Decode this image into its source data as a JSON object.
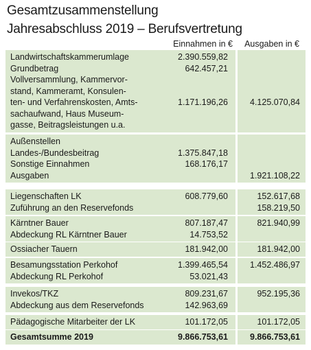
{
  "title_line1": "Gesamtzusammenstellung",
  "title_line2": "Jahresabschluss 2019 – Berufsvertretung",
  "col_income": "Einnahmen in €",
  "col_expense": "Ausgaben in €",
  "groups": [
    {
      "rows": [
        {
          "label": "Landwirtschaftskammerumlage",
          "in": "2.390.559,82",
          "out": ""
        },
        {
          "label": "Grundbetrag",
          "in": "642.457,21",
          "out": ""
        },
        {
          "label": "Vollversammlung, Kammervor-",
          "in": "",
          "out": ""
        },
        {
          "label": "stand, Kammeramt, Konsulen-",
          "in": "",
          "out": ""
        },
        {
          "label": "ten- und Verfahrenskosten, Amts-",
          "in": "1.171.196,26",
          "out": "4.125.070,84"
        },
        {
          "label": "sachaufwand, Haus Museum-",
          "in": "",
          "out": ""
        },
        {
          "label": "gasse, Beitragsleistungen u.a.",
          "in": "",
          "out": ""
        }
      ]
    },
    {
      "rows": [
        {
          "label": "Außenstellen",
          "in": "",
          "out": ""
        },
        {
          "label": "Landes-/Bundesbeitrag",
          "in": "1.375.847,18",
          "out": ""
        },
        {
          "label": "Sonstige Einnahmen",
          "in": "168.176,17",
          "out": ""
        },
        {
          "label": "Ausgaben",
          "in": "",
          "out": "1.921.108,22"
        }
      ]
    },
    {
      "rows": [
        {
          "label": "Liegenschaften LK",
          "in": "608.779,60",
          "out": "152.617,68"
        },
        {
          "label": "Zuführung an den Reservefonds",
          "in": "",
          "out": "158.219,50"
        }
      ]
    },
    {
      "rows": [
        {
          "label": "Kärntner Bauer",
          "in": "807.187,47",
          "out": "821.940,99"
        },
        {
          "label": "Abdeckung RL Kärntner Bauer",
          "in": "14.753,52",
          "out": ""
        }
      ]
    },
    {
      "rows": [
        {
          "label": "Ossiacher Tauern",
          "in": "181.942,00",
          "out": "181.942,00"
        }
      ]
    },
    {
      "rows": [
        {
          "label": "Besamungsstation Perkohof",
          "in": "1.399.465,54",
          "out": "1.452.486,97"
        },
        {
          "label": "Abdeckung RL Perkohof",
          "in": "53.021,43",
          "out": ""
        }
      ]
    },
    {
      "rows": [
        {
          "label": "Invekos/TKZ",
          "in": "809.231,67",
          "out": "952.195,36"
        },
        {
          "label": "Abdeckung aus dem Reservefonds",
          "in": "142.963,69",
          "out": ""
        }
      ]
    },
    {
      "rows": [
        {
          "label": "Pädagogische Mitarbeiter der LK",
          "in": "101.172,05",
          "out": "101.172,05"
        }
      ]
    },
    {
      "total": true,
      "rows": [
        {
          "label": "Gesamtsumme 2019",
          "in": "9.866.753,61",
          "out": "9.866.753,61"
        }
      ]
    }
  ]
}
